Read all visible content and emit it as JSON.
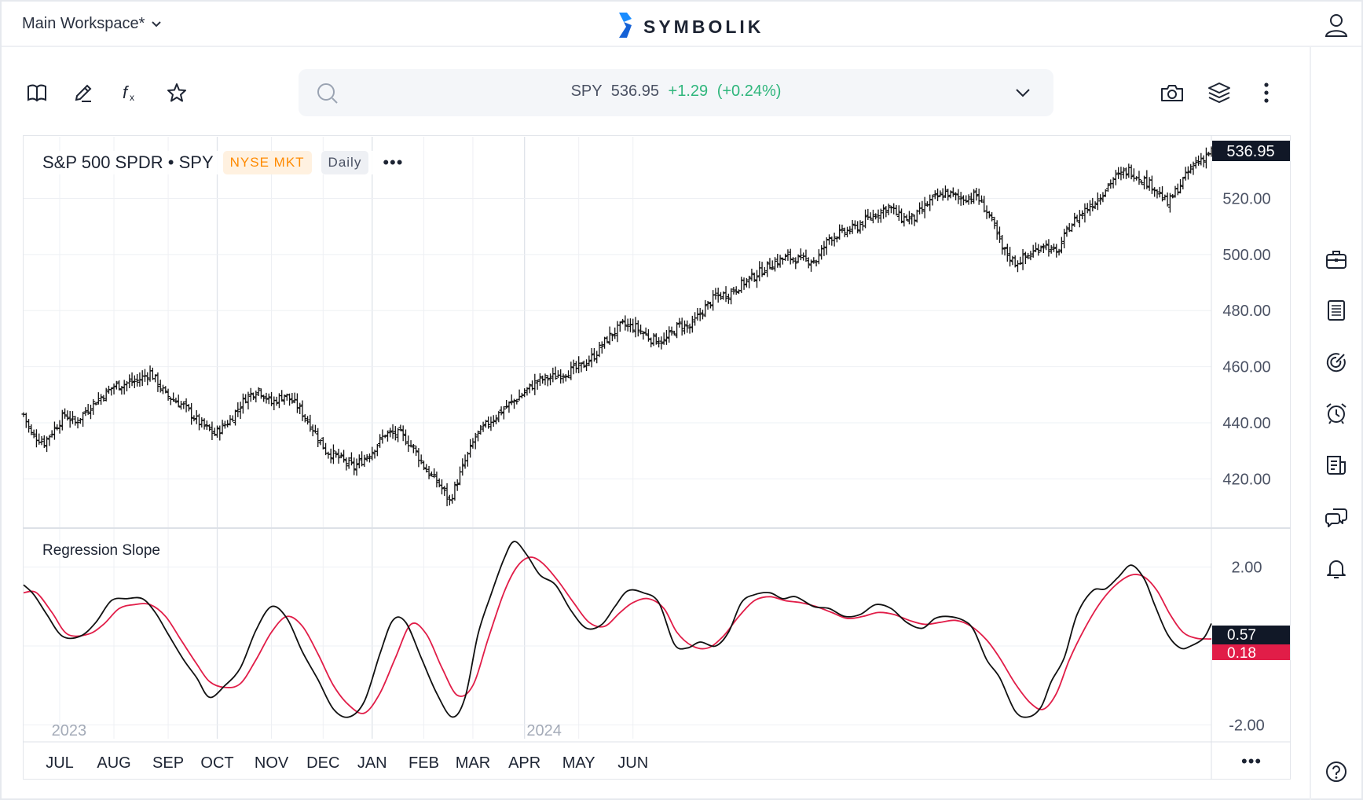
{
  "header": {
    "workspace": "Main Workspace*",
    "brand": "SYMBOLIK",
    "icons": {
      "workspace_chevron": "chevron-down-icon",
      "user": "user-icon",
      "logo": "symbolik-logo"
    }
  },
  "toolbar": {
    "left_tools": [
      "book-icon",
      "pencil-icon",
      "function-icon",
      "star-icon"
    ],
    "right_tools": [
      "camera-icon",
      "layers-icon",
      "more-vertical-icon"
    ],
    "search": {
      "symbol": "SPY",
      "price": "536.95",
      "change": "+1.29",
      "change_pct": "(+0.24%)"
    }
  },
  "sidebar": [
    "briefcase-icon",
    "list-icon",
    "radar-icon",
    "alarm-clock-icon",
    "news-icon",
    "chat-icon",
    "bell-icon",
    "help-icon"
  ],
  "legend": {
    "title": "S&P 500 SPDR • SPY",
    "exchange": "NYSE MKT",
    "interval": "Daily",
    "more": "•••"
  },
  "indicator": {
    "title": "Regression Slope",
    "value_black": "0.57",
    "value_red": "0.18"
  },
  "footer": {
    "more": "•••"
  },
  "colors": {
    "accent_blue": "#1a8cff",
    "up_green": "#2fb67c",
    "price_tag_bg": "#111827",
    "signal_red": "#e11d48",
    "exchange_orange": "#ff8a00"
  },
  "chart_data": [
    {
      "type": "ohlc",
      "title": "S&P 500 SPDR • SPY",
      "last_price": "536.95",
      "ylim": [
        403,
        542
      ],
      "yticks": [
        "420.00",
        "440.00",
        "460.00",
        "480.00",
        "500.00",
        "520.00"
      ],
      "ytick_values": [
        420,
        440,
        460,
        480,
        500,
        520
      ],
      "x_months": [
        "JUL",
        "AUG",
        "SEP",
        "OCT",
        "NOV",
        "DEC",
        "JAN",
        "FEB",
        "MAR",
        "APR",
        "MAY",
        "JUN"
      ],
      "x_years": [
        "2023",
        "2024"
      ],
      "close_path": [
        [
          0,
          443
        ],
        [
          3,
          436
        ],
        [
          8,
          433
        ],
        [
          12,
          438
        ],
        [
          16,
          443
        ],
        [
          20,
          440
        ],
        [
          27,
          447
        ],
        [
          35,
          453
        ],
        [
          44,
          455
        ],
        [
          49,
          458
        ],
        [
          55,
          450
        ],
        [
          62,
          446
        ],
        [
          68,
          440
        ],
        [
          74,
          436
        ],
        [
          80,
          441
        ],
        [
          86,
          449
        ],
        [
          91,
          452
        ],
        [
          96,
          447
        ],
        [
          101,
          450
        ],
        [
          106,
          446
        ],
        [
          112,
          438
        ],
        [
          117,
          430
        ],
        [
          123,
          427
        ],
        [
          128,
          424
        ],
        [
          135,
          430
        ],
        [
          140,
          436
        ],
        [
          146,
          436
        ],
        [
          151,
          431
        ],
        [
          156,
          423
        ],
        [
          161,
          418
        ],
        [
          165,
          412
        ],
        [
          170,
          424
        ],
        [
          175,
          435
        ],
        [
          180,
          440
        ],
        [
          186,
          445
        ],
        [
          193,
          450
        ],
        [
          199,
          455
        ],
        [
          204,
          456
        ],
        [
          210,
          458
        ],
        [
          216,
          460
        ],
        [
          221,
          464
        ],
        [
          226,
          470
        ],
        [
          232,
          475
        ],
        [
          237,
          474
        ],
        [
          243,
          470
        ],
        [
          248,
          469
        ],
        [
          254,
          475
        ],
        [
          258,
          474
        ],
        [
          263,
          480
        ],
        [
          268,
          485
        ],
        [
          273,
          486
        ],
        [
          279,
          490
        ],
        [
          284,
          493
        ],
        [
          290,
          497
        ],
        [
          296,
          499
        ],
        [
          302,
          498
        ],
        [
          307,
          498
        ],
        [
          312,
          506
        ],
        [
          318,
          508
        ],
        [
          323,
          510
        ],
        [
          329,
          514
        ],
        [
          335,
          517
        ],
        [
          340,
          513
        ],
        [
          345,
          513
        ],
        [
          351,
          519
        ],
        [
          357,
          522
        ],
        [
          363,
          520
        ],
        [
          369,
          521
        ],
        [
          374,
          514
        ],
        [
          379,
          502
        ],
        [
          384,
          497
        ],
        [
          390,
          500
        ],
        [
          395,
          504
        ],
        [
          400,
          500
        ],
        [
          405,
          510
        ],
        [
          410,
          515
        ],
        [
          416,
          520
        ],
        [
          422,
          527
        ],
        [
          428,
          530
        ],
        [
          433,
          527
        ],
        [
          438,
          524
        ],
        [
          443,
          518
        ],
        [
          448,
          525
        ],
        [
          453,
          532
        ],
        [
          460,
          536.95
        ]
      ]
    },
    {
      "type": "line",
      "title": "Regression Slope",
      "ylim": [
        -2.35,
        2.95
      ],
      "yticks": [
        "2.00",
        "-2.00"
      ],
      "ytick_values": [
        2,
        -2
      ],
      "series": [
        {
          "values": [
            [
              0,
              1.55
            ],
            [
              4,
              1.3
            ],
            [
              9,
              0.8
            ],
            [
              15,
              0.25
            ],
            [
              22,
              0.25
            ],
            [
              28,
              0.6
            ],
            [
              34,
              1.15
            ],
            [
              40,
              1.2
            ],
            [
              46,
              1.2
            ],
            [
              51,
              0.85
            ],
            [
              56,
              0.3
            ],
            [
              62,
              -0.35
            ],
            [
              67,
              -0.8
            ],
            [
              72,
              -1.3
            ],
            [
              78,
              -1.0
            ],
            [
              84,
              -0.55
            ],
            [
              90,
              0.4
            ],
            [
              96,
              1.0
            ],
            [
              102,
              0.7
            ],
            [
              108,
              -0.15
            ],
            [
              114,
              -0.85
            ],
            [
              120,
              -1.6
            ],
            [
              126,
              -1.8
            ],
            [
              132,
              -1.4
            ],
            [
              138,
              -0.2
            ],
            [
              143,
              0.65
            ],
            [
              148,
              0.6
            ],
            [
              154,
              -0.3
            ],
            [
              160,
              -1.2
            ],
            [
              166,
              -1.8
            ],
            [
              171,
              -1.3
            ],
            [
              176,
              0.3
            ],
            [
              181,
              1.3
            ],
            [
              186,
              2.2
            ],
            [
              190,
              2.65
            ],
            [
              195,
              2.3
            ],
            [
              200,
              1.8
            ],
            [
              206,
              1.55
            ],
            [
              212,
              0.9
            ],
            [
              218,
              0.45
            ],
            [
              224,
              0.55
            ],
            [
              229,
              1.0
            ],
            [
              234,
              1.4
            ],
            [
              240,
              1.35
            ],
            [
              246,
              1.1
            ],
            [
              252,
              0.05
            ],
            [
              257,
              -0.05
            ],
            [
              262,
              0.1
            ],
            [
              268,
              0.0
            ],
            [
              273,
              0.35
            ],
            [
              278,
              1.1
            ],
            [
              283,
              1.3
            ],
            [
              289,
              1.35
            ],
            [
              294,
              1.2
            ],
            [
              299,
              1.25
            ],
            [
              306,
              1.0
            ],
            [
              312,
              0.95
            ],
            [
              318,
              0.75
            ],
            [
              324,
              0.8
            ],
            [
              330,
              1.05
            ],
            [
              336,
              0.95
            ],
            [
              342,
              0.6
            ],
            [
              348,
              0.45
            ],
            [
              353,
              0.7
            ],
            [
              358,
              0.75
            ],
            [
              364,
              0.65
            ],
            [
              368,
              0.4
            ],
            [
              373,
              -0.35
            ],
            [
              378,
              -0.8
            ],
            [
              384,
              -1.65
            ],
            [
              389,
              -1.8
            ],
            [
              394,
              -1.55
            ],
            [
              398,
              -0.9
            ],
            [
              403,
              -0.3
            ],
            [
              408,
              0.8
            ],
            [
              414,
              1.4
            ],
            [
              419,
              1.45
            ],
            [
              424,
              1.75
            ],
            [
              429,
              2.05
            ],
            [
              434,
              1.7
            ],
            [
              438,
              1.05
            ],
            [
              443,
              0.3
            ],
            [
              448,
              -0.05
            ],
            [
              452,
              0.0
            ],
            [
              457,
              0.2
            ],
            [
              460,
              0.57
            ]
          ]
        },
        {
          "values": [
            [
              0,
              1.35
            ],
            [
              5,
              1.35
            ],
            [
              11,
              0.85
            ],
            [
              17,
              0.3
            ],
            [
              25,
              0.3
            ],
            [
              31,
              0.55
            ],
            [
              37,
              0.95
            ],
            [
              43,
              1.05
            ],
            [
              49,
              1.05
            ],
            [
              55,
              0.75
            ],
            [
              61,
              0.15
            ],
            [
              67,
              -0.45
            ],
            [
              72,
              -0.9
            ],
            [
              78,
              -1.05
            ],
            [
              84,
              -0.95
            ],
            [
              90,
              -0.35
            ],
            [
              96,
              0.35
            ],
            [
              102,
              0.75
            ],
            [
              108,
              0.5
            ],
            [
              114,
              -0.2
            ],
            [
              120,
              -1.0
            ],
            [
              126,
              -1.5
            ],
            [
              132,
              -1.7
            ],
            [
              138,
              -1.2
            ],
            [
              144,
              -0.3
            ],
            [
              150,
              0.55
            ],
            [
              156,
              0.3
            ],
            [
              162,
              -0.55
            ],
            [
              168,
              -1.25
            ],
            [
              174,
              -1.0
            ],
            [
              180,
              0.2
            ],
            [
              186,
              1.35
            ],
            [
              191,
              2.0
            ],
            [
              196,
              2.25
            ],
            [
              201,
              2.1
            ],
            [
              207,
              1.65
            ],
            [
              213,
              1.1
            ],
            [
              219,
              0.6
            ],
            [
              225,
              0.5
            ],
            [
              231,
              0.85
            ],
            [
              236,
              1.1
            ],
            [
              242,
              1.2
            ],
            [
              248,
              0.95
            ],
            [
              253,
              0.35
            ],
            [
              259,
              0.0
            ],
            [
              265,
              -0.05
            ],
            [
              271,
              0.25
            ],
            [
              277,
              0.75
            ],
            [
              283,
              1.15
            ],
            [
              289,
              1.25
            ],
            [
              295,
              1.15
            ],
            [
              301,
              1.1
            ],
            [
              307,
              1.0
            ],
            [
              313,
              0.85
            ],
            [
              319,
              0.7
            ],
            [
              325,
              0.75
            ],
            [
              331,
              0.85
            ],
            [
              337,
              0.8
            ],
            [
              343,
              0.65
            ],
            [
              349,
              0.55
            ],
            [
              355,
              0.6
            ],
            [
              361,
              0.65
            ],
            [
              367,
              0.5
            ],
            [
              373,
              0.15
            ],
            [
              378,
              -0.3
            ],
            [
              384,
              -0.95
            ],
            [
              390,
              -1.45
            ],
            [
              395,
              -1.6
            ],
            [
              400,
              -1.2
            ],
            [
              405,
              -0.35
            ],
            [
              411,
              0.45
            ],
            [
              417,
              1.1
            ],
            [
              423,
              1.55
            ],
            [
              429,
              1.8
            ],
            [
              434,
              1.75
            ],
            [
              439,
              1.4
            ],
            [
              444,
              0.8
            ],
            [
              449,
              0.35
            ],
            [
              454,
              0.2
            ],
            [
              458,
              0.18
            ],
            [
              460,
              0.18
            ]
          ]
        }
      ]
    }
  ]
}
